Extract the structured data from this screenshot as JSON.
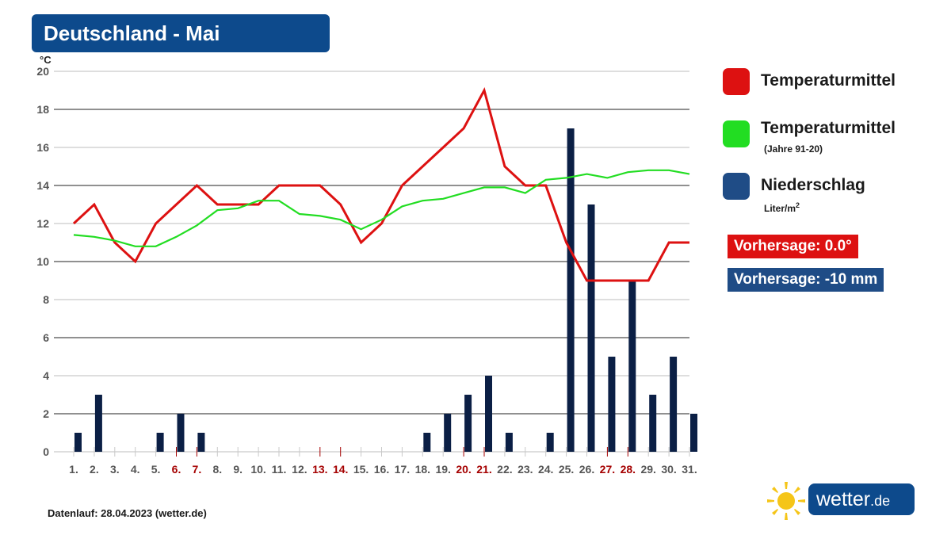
{
  "header": {
    "title": "Deutschland - Mai"
  },
  "colors": {
    "temp": "#dd1111",
    "temp_normal": "#22dd22",
    "precip": "#0b1f45",
    "title_bg": "#0d4a8c",
    "forecast_precip_bg": "#1f4c86",
    "weekend_tick": "#a50000",
    "weekday_tick": "#555555"
  },
  "chart_data": {
    "type": "bar+line",
    "y_unit": "°C",
    "ylim": [
      0,
      20
    ],
    "yticks": [
      "0",
      "2",
      "4",
      "6",
      "8",
      "10",
      "12",
      "14",
      "16",
      "18",
      "20"
    ],
    "grid": true,
    "categories": [
      "1.",
      "2.",
      "3.",
      "4.",
      "5.",
      "6.",
      "7.",
      "8.",
      "9.",
      "10.",
      "11.",
      "12.",
      "13.",
      "14.",
      "15.",
      "16.",
      "17.",
      "18.",
      "19.",
      "20.",
      "21.",
      "22.",
      "23.",
      "24.",
      "25.",
      "26.",
      "27.",
      "28.",
      "29.",
      "30.",
      "31."
    ],
    "weekend_days": [
      "6.",
      "7.",
      "13.",
      "14.",
      "20.",
      "21.",
      "27.",
      "28."
    ],
    "series": [
      {
        "name": "Temperaturmittel",
        "type": "line",
        "values": [
          12,
          13,
          11,
          10,
          12,
          13,
          14,
          13,
          13,
          13,
          14,
          14,
          14,
          13,
          11,
          12,
          14,
          15,
          16,
          17,
          19,
          15,
          14,
          14,
          11,
          9,
          9,
          9,
          9,
          11,
          11
        ]
      },
      {
        "name": "Temperaturmittel (Jahre 91-20)",
        "type": "line",
        "values": [
          11.4,
          11.3,
          11.1,
          10.8,
          10.8,
          11.3,
          11.9,
          12.7,
          12.8,
          13.2,
          13.2,
          12.5,
          12.4,
          12.2,
          11.7,
          12.2,
          12.9,
          13.2,
          13.3,
          13.6,
          13.9,
          13.9,
          13.6,
          14.3,
          14.4,
          14.6,
          14.4,
          14.7,
          14.8,
          14.8,
          14.6
        ]
      },
      {
        "name": "Niederschlag",
        "type": "bar",
        "values": [
          1,
          3,
          0,
          0,
          1,
          2,
          1,
          0,
          0,
          0,
          0,
          0,
          0,
          0,
          0,
          0,
          0,
          1,
          2,
          3,
          4,
          1,
          0,
          1,
          17,
          13,
          5,
          9,
          3,
          5,
          2
        ]
      }
    ]
  },
  "legend": {
    "temp_label": "Temperaturmittel",
    "normal_label": "Temperaturmittel",
    "normal_sub": "(Jahre 91-20)",
    "precip_label": "Niederschlag",
    "precip_unit": "Liter/m",
    "precip_unit_sup": "2"
  },
  "forecast": {
    "temp": "Vorhersage: 0.0°",
    "precip": "Vorhersage: -10 mm"
  },
  "footer": {
    "datenlauf": "Datenlauf: 28.04.2023 (wetter.de)"
  },
  "logo": {
    "text_main": "wetter",
    "text_suffix": ".de"
  }
}
